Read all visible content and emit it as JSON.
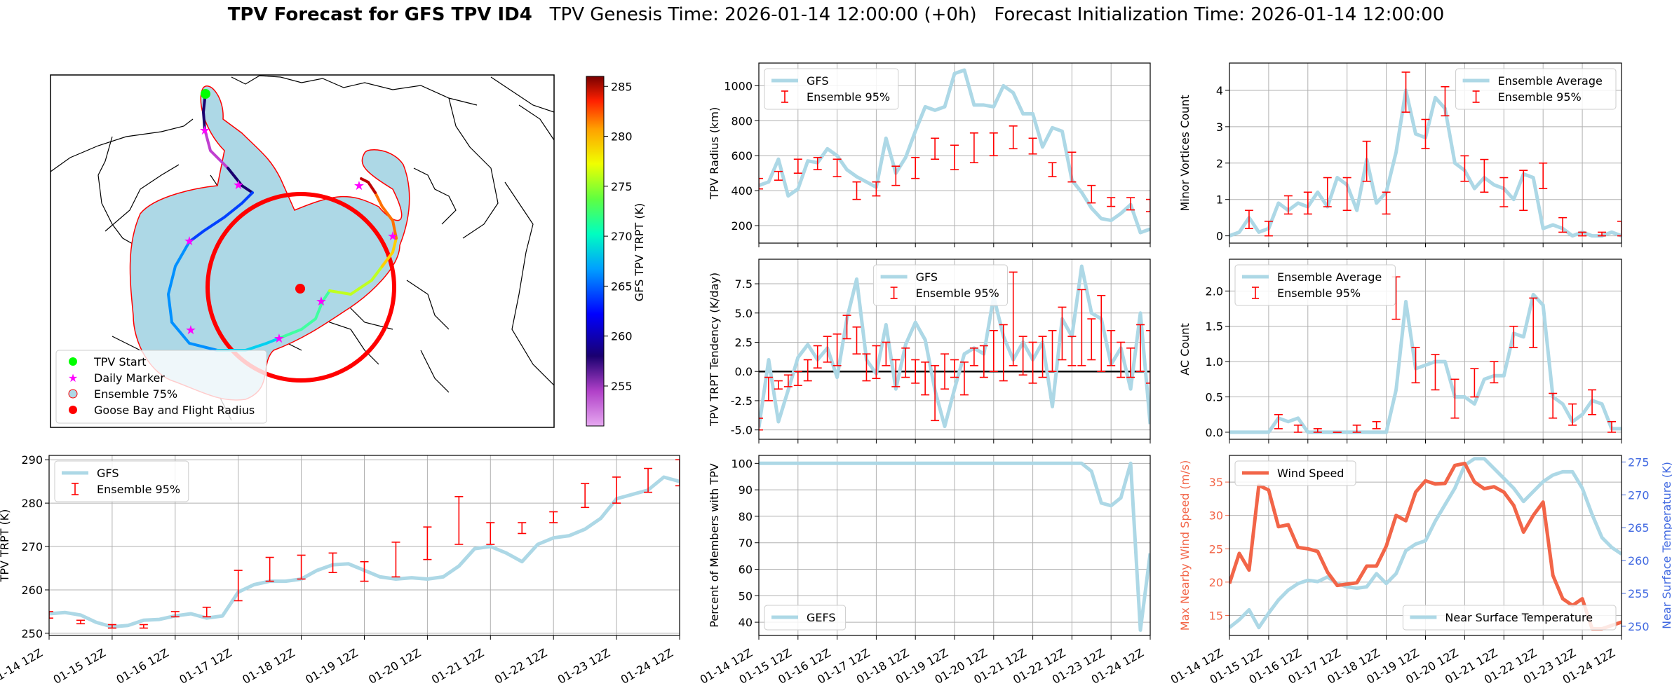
{
  "title": {
    "bold": "TPV Forecast for GFS TPV ID4",
    "genesis": "TPV Genesis Time: 2026-01-14 12:00:00 (+0h)",
    "init": "Forecast Initialization Time: 2026-01-14 12:00:00"
  },
  "colors": {
    "gfs": "#add8e6",
    "ens": "#ff0000",
    "wind": "#f26548",
    "temp_axis": "#4169e1",
    "zero": "#000000",
    "land": "#ffffff",
    "shade": "#add8e6",
    "circle": "#ff0000",
    "start": "#00ff00",
    "daily": "#ff00ff"
  },
  "map": {
    "legend": [
      "TPV Start",
      "Daily Marker",
      "Ensemble 75%",
      "Goose Bay and Flight Radius"
    ],
    "colorbar": {
      "label": "GFS TPV TRPT (K)",
      "min": 251,
      "max": 286,
      "ticks": [
        255,
        260,
        265,
        270,
        275,
        280,
        285
      ]
    }
  },
  "chart_data": [
    {
      "id": "radius",
      "type": "line",
      "ylabel": "TPV Radius (km)",
      "ylim": [
        100,
        1130
      ],
      "yticks": [
        200,
        400,
        600,
        800,
        1000
      ],
      "legend": "top-left",
      "legend_labels": [
        "GFS",
        "Ensemble 95%"
      ],
      "gfs": [
        430,
        450,
        580,
        370,
        410,
        570,
        560,
        640,
        600,
        520,
        480,
        450,
        420,
        700,
        500,
        590,
        740,
        880,
        860,
        880,
        1070,
        1090,
        890,
        890,
        880,
        1000,
        960,
        840,
        840,
        650,
        760,
        740,
        460,
        390,
        300,
        240,
        230,
        270,
        320,
        160,
        180
      ],
      "ens_x": [
        0,
        2,
        4,
        6,
        8,
        10,
        12,
        14,
        16,
        18,
        20,
        22,
        24,
        26,
        28,
        30,
        32,
        34,
        36,
        38,
        40
      ],
      "ens_low": [
        410,
        460,
        500,
        520,
        480,
        350,
        370,
        430,
        470,
        580,
        520,
        560,
        600,
        640,
        610,
        480,
        450,
        330,
        310,
        290,
        280
      ],
      "ens_high": [
        470,
        510,
        580,
        590,
        580,
        450,
        450,
        540,
        590,
        700,
        660,
        730,
        730,
        770,
        700,
        560,
        620,
        430,
        360,
        360,
        350
      ]
    },
    {
      "id": "minor",
      "type": "line",
      "ylabel": "Minor Vortices Count",
      "ylim": [
        -0.2,
        4.75
      ],
      "yticks": [
        0,
        1,
        2,
        3,
        4
      ],
      "legend": "top-right",
      "legend_labels": [
        "Ensemble Average",
        "Ensemble 95%"
      ],
      "gfs": [
        0,
        0.1,
        0.5,
        0.1,
        0.2,
        0.9,
        0.7,
        0.9,
        0.8,
        1.2,
        0.8,
        1.6,
        1.4,
        0.7,
        2.1,
        0.9,
        1.2,
        2.3,
        4.0,
        2.8,
        2.7,
        3.8,
        3.5,
        2.0,
        1.8,
        1.3,
        1.6,
        1.4,
        1.3,
        1.0,
        1.7,
        1.6,
        0.2,
        0.3,
        0.2,
        0,
        0.1,
        0,
        0,
        0.1,
        0
      ],
      "ens_x": [
        2,
        4,
        6,
        8,
        10,
        12,
        14,
        16,
        18,
        20,
        22,
        24,
        26,
        28,
        30,
        32,
        34,
        36,
        38,
        40
      ],
      "ens_low": [
        0.2,
        0,
        0.6,
        0.6,
        0.8,
        0.7,
        1.5,
        0.6,
        3.4,
        2.4,
        3.3,
        1.5,
        1.2,
        0.8,
        0.7,
        1.3,
        0.1,
        0,
        0,
        0
      ],
      "ens_high": [
        0.7,
        0.4,
        1.1,
        1.2,
        1.6,
        1.6,
        2.6,
        1.2,
        4.5,
        3.2,
        4.1,
        2.2,
        2.1,
        1.6,
        1.8,
        2.0,
        0.5,
        0.1,
        0.1,
        0.4
      ]
    },
    {
      "id": "tendency",
      "type": "line",
      "ylabel": "TPV TRPT Tendency (K/day)",
      "ylim": [
        -5.8,
        9.6
      ],
      "yticks": [
        -5.0,
        -2.5,
        0.0,
        2.5,
        5.0,
        7.5
      ],
      "zero_line": 0,
      "legend": "top-center",
      "legend_labels": [
        "GFS",
        "Ensemble 95%"
      ],
      "gfs": [
        -4.8,
        1.0,
        -4.3,
        -1.6,
        1.2,
        2.3,
        1.0,
        2.0,
        -0.5,
        4.5,
        7.9,
        1.0,
        -0.2,
        4.0,
        -1.5,
        2.3,
        4.2,
        2.7,
        -1.6,
        -4.7,
        -1.5,
        1.5,
        2.0,
        1.5,
        6.4,
        3.0,
        1.0,
        2.5,
        1.0,
        2.5,
        -3.0,
        4.5,
        3.0,
        9.0,
        5.0,
        4.5,
        0.6,
        2.0,
        -1.5,
        5.0,
        -4.5
      ],
      "ens_x": [
        0,
        1,
        2,
        3,
        4,
        5,
        6,
        7,
        8,
        9,
        10,
        11,
        12,
        13,
        14,
        15,
        16,
        17,
        18,
        19,
        20,
        21,
        22,
        23,
        24,
        25,
        26,
        27,
        28,
        29,
        30,
        31,
        32,
        33,
        34,
        35,
        36,
        37,
        38,
        39,
        40
      ],
      "ens_low": [
        -5.0,
        -2.5,
        -1.5,
        -1.3,
        -1.2,
        -0.8,
        0.3,
        0.8,
        0.5,
        2.8,
        1.5,
        -0.8,
        -0.6,
        0.5,
        -1.3,
        -0.5,
        -1.0,
        -2.0,
        -4.2,
        -1.5,
        -0.5,
        -2.0,
        0.5,
        -0.5,
        0,
        -0.8,
        0.5,
        -0.3,
        -1.0,
        -0.5,
        0,
        1.0,
        0.5,
        0.5,
        1.0,
        0,
        0.5,
        -0.5,
        -0.5,
        0,
        -1.0
      ],
      "ens_high": [
        -4.0,
        -0.5,
        -0.8,
        -0.3,
        0,
        1.0,
        2.2,
        3.0,
        3.2,
        4.8,
        3.8,
        1.5,
        2.2,
        2.5,
        1.0,
        2.0,
        1.0,
        0.8,
        0.5,
        1.5,
        1.0,
        0.8,
        2.0,
        2.2,
        3.5,
        4.0,
        8.5,
        3.0,
        2.5,
        3.0,
        3.5,
        5.5,
        3.0,
        7.0,
        4.5,
        6.5,
        3.5,
        2.5,
        2.0,
        4.0,
        3.5
      ]
    },
    {
      "id": "ac",
      "type": "line",
      "ylabel": "AC Count",
      "ylim": [
        -0.1,
        2.45
      ],
      "yticks": [
        0.0,
        0.5,
        1.0,
        1.5,
        2.0
      ],
      "legend": "top-left",
      "legend_labels": [
        "Ensemble Average",
        "Ensemble 95%"
      ],
      "gfs": [
        0,
        0,
        0,
        0,
        0,
        0.2,
        0.15,
        0.2,
        0,
        0,
        0,
        0,
        0,
        0,
        0,
        0,
        0,
        0.6,
        1.85,
        0.9,
        0.95,
        1.0,
        1.0,
        0.5,
        0.5,
        0.4,
        0.75,
        0.8,
        0.8,
        1.4,
        1.35,
        1.95,
        1.8,
        0.5,
        0.4,
        0.15,
        0.25,
        0.45,
        0.4,
        0.05,
        0.05
      ],
      "ens_x": [
        5,
        7,
        9,
        11,
        13,
        15,
        17,
        19,
        21,
        23,
        25,
        27,
        29,
        31,
        33,
        35,
        37,
        39
      ],
      "ens_low": [
        0.05,
        0,
        0,
        0,
        0,
        0.05,
        1.6,
        0.7,
        0.6,
        0.2,
        0.5,
        0.7,
        1.2,
        1.2,
        0.2,
        0.1,
        0.25,
        0
      ],
      "ens_high": [
        0.25,
        0.1,
        0.05,
        0,
        0.1,
        0.15,
        2.2,
        1.2,
        1.1,
        0.75,
        0.9,
        1.0,
        1.5,
        1.9,
        0.55,
        0.4,
        0.6,
        0.15
      ]
    },
    {
      "id": "trpt",
      "type": "line",
      "ylabel": "TPV TRPT (K)",
      "ylim": [
        249.5,
        291
      ],
      "yticks": [
        250,
        260,
        270,
        280,
        290
      ],
      "legend": "top-left",
      "legend_labels": [
        "GFS",
        "Ensemble 95%"
      ],
      "gfs": [
        254.5,
        254.8,
        254.2,
        252.5,
        251.5,
        251.8,
        253.0,
        253.2,
        254.0,
        254.5,
        253.5,
        254.0,
        259.5,
        261.2,
        262.0,
        262.0,
        262.5,
        264.5,
        265.8,
        266.0,
        264.5,
        263.0,
        262.5,
        262.8,
        262.5,
        263.0,
        265.5,
        269.5,
        270.0,
        268.5,
        266.5,
        270.5,
        272.0,
        272.5,
        274.0,
        276.5,
        281.0,
        282.0,
        283.0,
        286.0,
        285.0
      ],
      "ens_x": [
        0,
        2,
        4,
        6,
        8,
        10,
        12,
        14,
        16,
        18,
        20,
        22,
        24,
        26,
        28,
        30,
        32,
        34,
        36,
        38,
        40
      ],
      "ens_low": [
        253.5,
        252.2,
        251.2,
        251.2,
        253.8,
        253.8,
        257.5,
        262.0,
        262.5,
        264.0,
        262.0,
        263.0,
        267.0,
        270.5,
        270.5,
        273.0,
        275.5,
        279.0,
        280.0,
        282.5,
        284.0
      ],
      "ens_high": [
        255.0,
        253.0,
        252.0,
        252.0,
        255.0,
        256.0,
        264.5,
        267.5,
        268.0,
        268.5,
        266.5,
        271.0,
        274.5,
        281.5,
        275.5,
        275.5,
        278.0,
        284.5,
        286.0,
        288.0,
        290.0
      ]
    },
    {
      "id": "members",
      "type": "line",
      "ylabel": "Percent of Members with TPV",
      "ylim": [
        35,
        103
      ],
      "yticks": [
        40,
        50,
        60,
        70,
        80,
        90,
        100
      ],
      "legend": "bottom-left",
      "legend_labels": [
        "GEFS"
      ],
      "gfs": [
        100,
        100,
        100,
        100,
        100,
        100,
        100,
        100,
        100,
        100,
        100,
        100,
        100,
        100,
        100,
        100,
        100,
        100,
        100,
        100,
        100,
        100,
        100,
        100,
        100,
        100,
        100,
        100,
        100,
        100,
        100,
        100,
        100,
        100,
        97,
        85,
        84,
        87,
        100,
        37,
        66
      ]
    },
    {
      "id": "wind",
      "type": "line",
      "ylabel": "Max Nearby Wind Speed (m/s)",
      "ylim": [
        12,
        39
      ],
      "yticks": [
        15,
        20,
        25,
        30,
        35
      ],
      "ylabel2": "Near Surface Temperature (K)",
      "ylim2": [
        248.6,
        276
      ],
      "yticks2": [
        250,
        255,
        260,
        265,
        270,
        275
      ],
      "legend": "top-left",
      "legend_labels": [
        "Wind Speed"
      ],
      "legend2": "bottom-right",
      "legend2_labels": [
        "Near Surface Temperature"
      ],
      "wind": [
        19.8,
        24.3,
        21.8,
        34.5,
        33.8,
        28.3,
        28.6,
        25.2,
        25.0,
        24.6,
        21.5,
        19.5,
        19.7,
        19.9,
        22.4,
        22.4,
        25.4,
        30.0,
        29.2,
        33.5,
        35.2,
        34.7,
        34.8,
        37.5,
        37.8,
        35.0,
        34.0,
        34.3,
        33.5,
        31.5,
        27.5,
        30.0,
        32.0,
        21.0,
        17.5,
        16.5,
        17.5,
        13.0,
        13.0,
        13.5,
        14.0
      ],
      "temp": [
        249.8,
        251.0,
        252.5,
        249.8,
        252.0,
        254.0,
        255.5,
        256.5,
        257.0,
        256.8,
        257.5,
        256.5,
        256.0,
        255.8,
        256.0,
        258.0,
        256.5,
        258.0,
        261.5,
        262.5,
        263.0,
        266.0,
        268.5,
        271.0,
        274.5,
        275.5,
        275.5,
        274.0,
        272.5,
        271.0,
        269.0,
        270.5,
        272.0,
        273.0,
        273.5,
        273.5,
        271.0,
        267.0,
        263.5,
        262.0,
        261.0
      ]
    }
  ],
  "xaxis": {
    "tick_labels": [
      "01-14 12Z",
      "01-15 12Z",
      "01-16 12Z",
      "01-17 12Z",
      "01-18 12Z",
      "01-19 12Z",
      "01-20 12Z",
      "01-21 12Z",
      "01-22 12Z",
      "01-23 12Z",
      "01-24 12Z"
    ]
  }
}
